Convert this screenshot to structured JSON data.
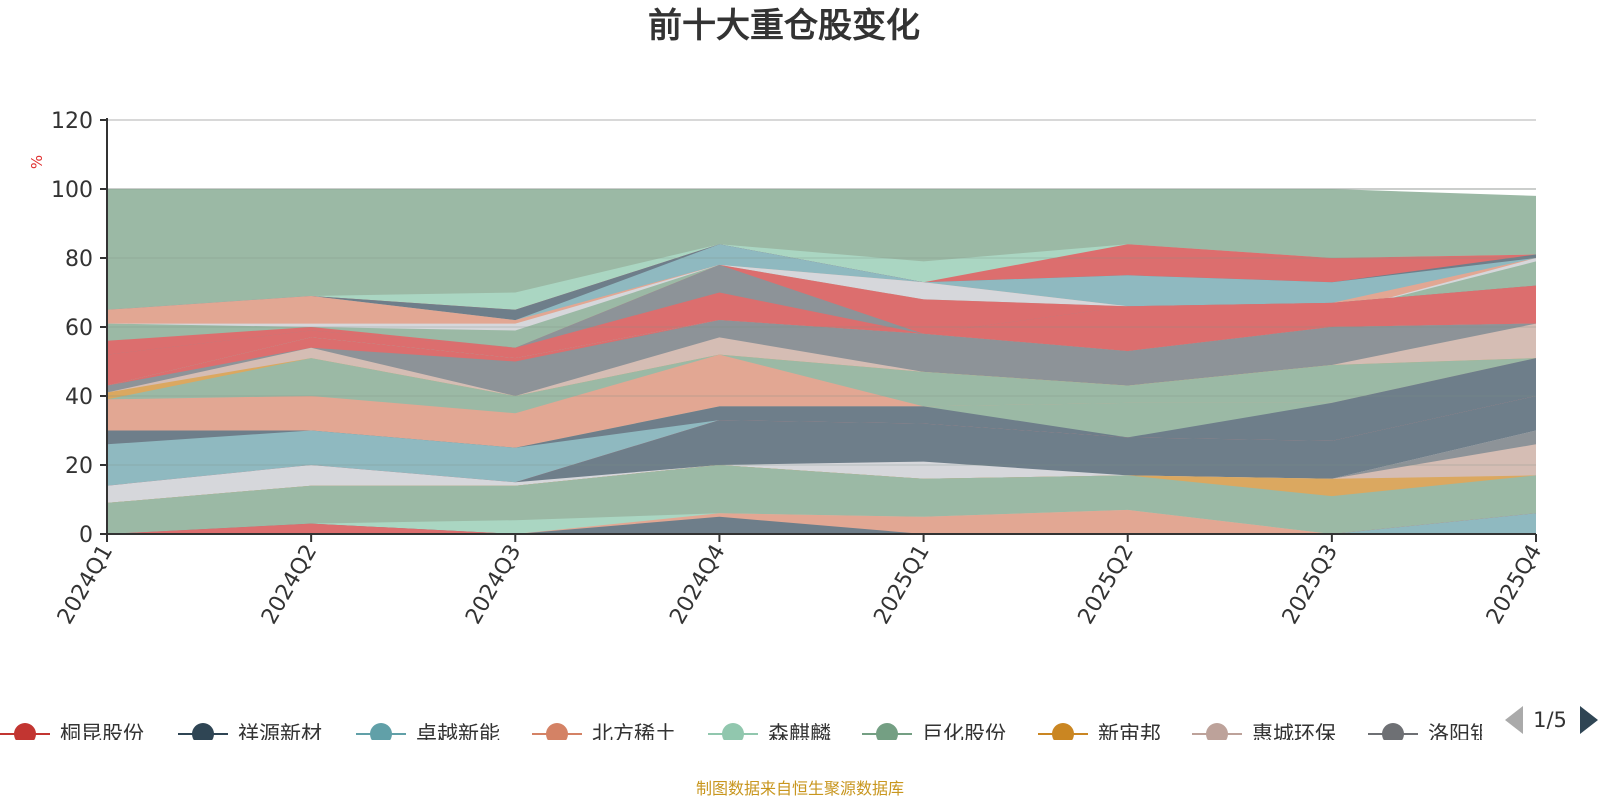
{
  "chart_data": {
    "type": "area",
    "title": "前十大重仓股变化",
    "ylabel": "%",
    "ylim": [
      0,
      120
    ],
    "yticks": [
      "0",
      "20",
      "40",
      "60",
      "80",
      "100",
      "120"
    ],
    "grid": true,
    "categories": [
      "2024Q1",
      "2024Q2",
      "2024Q3",
      "2024Q4",
      "2025Q1",
      "2025Q2",
      "2025Q3",
      "2025Q4"
    ],
    "layers": [
      {
        "values": [
          100,
          100,
          100,
          100,
          100,
          100,
          100,
          98
        ],
        "color": "#9bb9a5"
      },
      {
        "values": [
          65,
          69,
          70,
          84,
          79,
          84,
          80,
          81
        ],
        "color": "#aad6c2"
      },
      {
        "values": [
          65,
          69,
          65,
          84,
          73,
          84,
          80,
          81
        ],
        "color": "#dc6e6e"
      },
      {
        "values": [
          65,
          69,
          65,
          84,
          73,
          75,
          73,
          81
        ],
        "color": "#6e7e8a"
      },
      {
        "values": [
          65,
          69,
          62,
          84,
          73,
          75,
          73,
          80
        ],
        "color": "#8fb9c0"
      },
      {
        "values": [
          65,
          69,
          62,
          78,
          73,
          66,
          67,
          80
        ],
        "color": "#e2a793"
      },
      {
        "values": [
          61,
          61,
          61,
          78,
          73,
          66,
          64,
          80
        ],
        "color": "#d6d7db"
      },
      {
        "values": [
          61,
          60,
          59,
          78,
          68,
          66,
          64,
          79
        ],
        "color": "#9bb9a5"
      },
      {
        "values": [
          56,
          60,
          54,
          78,
          68,
          66,
          67,
          72
        ],
        "color": "#dc6e6e"
      },
      {
        "values": [
          52,
          59,
          54,
          78,
          58,
          66,
          67,
          72
        ],
        "color": "#8d9398"
      },
      {
        "values": [
          52,
          59,
          54,
          70,
          58,
          66,
          67,
          72
        ],
        "color": "#dc6e6e"
      },
      {
        "values": [
          43,
          57,
          51,
          62,
          58,
          53,
          60,
          61
        ],
        "color": "#8fb9c0"
      },
      {
        "values": [
          43,
          57,
          51,
          62,
          58,
          53,
          60,
          61
        ],
        "color": "#9bb9a5"
      },
      {
        "values": [
          43,
          57,
          51,
          62,
          58,
          53,
          60,
          61
        ],
        "color": "#dc6e6e"
      },
      {
        "values": [
          43,
          54,
          50,
          62,
          58,
          53,
          60,
          61
        ],
        "color": "#8d9398"
      },
      {
        "values": [
          41,
          54,
          40,
          57,
          47,
          43,
          49,
          61
        ],
        "color": "#d5bdb4"
      },
      {
        "values": [
          41,
          51,
          40,
          52,
          47,
          43,
          49,
          51
        ],
        "color": "#dba860"
      },
      {
        "values": [
          39,
          51,
          40,
          52,
          47,
          43,
          49,
          51
        ],
        "color": "#9bb9a5"
      },
      {
        "values": [
          39,
          40,
          35,
          52,
          37,
          38,
          38,
          51
        ],
        "color": "#e2a793"
      },
      {
        "values": [
          30,
          30,
          25,
          37,
          37,
          38,
          38,
          51
        ],
        "color": "#9bb9a5"
      },
      {
        "values": [
          30,
          30,
          25,
          37,
          37,
          28,
          38,
          51
        ],
        "color": "#6e7e8a"
      },
      {
        "values": [
          26,
          30,
          25,
          33,
          32,
          28,
          27,
          40
        ],
        "color": "#8fb9c0"
      },
      {
        "values": [
          14,
          20,
          15,
          33,
          32,
          28,
          27,
          40
        ],
        "color": "#dc6e6e"
      },
      {
        "values": [
          14,
          20,
          15,
          33,
          32,
          28,
          27,
          40
        ],
        "color": "#6e7e8a"
      },
      {
        "values": [
          14,
          20,
          15,
          20,
          21,
          17,
          16,
          30
        ],
        "color": "#d6d7db"
      },
      {
        "values": [
          9,
          14,
          14,
          20,
          16,
          17,
          16,
          30
        ],
        "color": "#8d9398"
      },
      {
        "values": [
          9,
          14,
          14,
          20,
          16,
          17,
          16,
          26
        ],
        "color": "#d5bdb4"
      },
      {
        "values": [
          9,
          14,
          14,
          20,
          16,
          17,
          16,
          17
        ],
        "color": "#dba860"
      },
      {
        "values": [
          9,
          14,
          14,
          20,
          16,
          17,
          11,
          17
        ],
        "color": "#9bb9a5"
      },
      {
        "values": [
          0,
          3,
          4,
          6,
          5,
          7,
          0,
          6
        ],
        "color": "#aad6c2"
      },
      {
        "values": [
          0,
          3,
          0,
          6,
          5,
          7,
          0,
          6
        ],
        "color": "#e2a793"
      },
      {
        "values": [
          0,
          3,
          0,
          5,
          0,
          0,
          0,
          6
        ],
        "color": "#6e7e8a"
      },
      {
        "values": [
          0,
          3,
          0,
          0,
          0,
          0,
          0,
          6
        ],
        "color": "#dc6e6e"
      },
      {
        "values": [
          0,
          0,
          0,
          0,
          0,
          0,
          0,
          6
        ],
        "color": "#8fb9c0"
      }
    ],
    "legend": {
      "placement": "bottom",
      "items": [
        {
          "name": "桐昆股份",
          "color": "#c23531"
        },
        {
          "name": "祥源新材",
          "color": "#2f4554"
        },
        {
          "name": "卓越新能",
          "color": "#61a0a8"
        },
        {
          "name": "北方稀土",
          "color": "#d48265"
        },
        {
          "name": "森麒麟",
          "color": "#91c7ae"
        },
        {
          "name": "巨化股份",
          "color": "#749f83"
        },
        {
          "name": "新宙邦",
          "color": "#ca8622"
        },
        {
          "name": "惠城环保",
          "color": "#bda29a"
        },
        {
          "name": "洛阳钼业",
          "color": "#6e7074"
        }
      ],
      "page": "1/5"
    }
  },
  "source_note": "制图数据来自恒生聚源数据库",
  "colors": {
    "unit": "#e03030",
    "source": "#c8961e",
    "axis": "#333333",
    "grid": "#cccccc",
    "pager_active": "#2f4554",
    "pager_inactive": "#aaaaaa"
  }
}
